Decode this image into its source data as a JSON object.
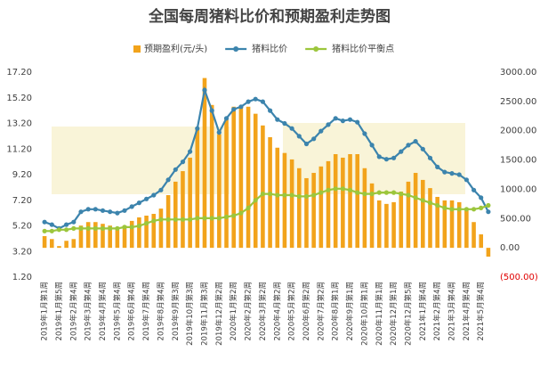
{
  "chart_data": {
    "type": "bar-line",
    "title": "全国每周猪料比价和预期盈利走势图",
    "categories": [
      "2019年1月第1周",
      null,
      "2019年1月第5周",
      null,
      "2019年2月第4周",
      null,
      "2019年3月第4周",
      null,
      "2019年4月第4周",
      null,
      "2019年5月第4周",
      null,
      "2019年6月第4周",
      null,
      "2019年7月第4周",
      null,
      "2019年8月第4周",
      null,
      "2019年9月第3周",
      null,
      "2019年10月第3周",
      null,
      "2019年11月第3周",
      null,
      "2019年12月第2周",
      null,
      "2020年1月第2周",
      null,
      "2020年2月第2周",
      null,
      "2020年3月第2周",
      null,
      "2020年4月第2周",
      null,
      "2020年5月第2周",
      null,
      "2020年6月第2周",
      null,
      "2020年7月第2周",
      null,
      "2020年8月第1周",
      null,
      "2020年9月第1周",
      null,
      "2020年10月第1周",
      null,
      "2020年11月第1周",
      null,
      "2020年12月第1周",
      null,
      "2020年12月第5周",
      null,
      "2021年1月第4周",
      null,
      "2021年2月第4周",
      null,
      "2021年3月第4周",
      null,
      "2021年4月第4周",
      null,
      "2021年5月第4周",
      null
    ],
    "series": [
      {
        "name": "预期盈利(元/头)",
        "kind": "bar",
        "axis": "y2",
        "color": "#f2a31b",
        "values": [
          200,
          150,
          30,
          120,
          150,
          380,
          440,
          440,
          410,
          380,
          350,
          380,
          460,
          520,
          550,
          580,
          670,
          900,
          1130,
          1310,
          1540,
          2030,
          2900,
          2440,
          1940,
          2230,
          2410,
          2410,
          2410,
          2290,
          2090,
          1890,
          1710,
          1620,
          1510,
          1360,
          1190,
          1280,
          1390,
          1480,
          1600,
          1540,
          1600,
          1600,
          1360,
          1100,
          810,
          750,
          780,
          960,
          1130,
          1280,
          1160,
          1020,
          870,
          810,
          810,
          780,
          670,
          440,
          230,
          -150
        ]
      },
      {
        "name": "猪料比价",
        "kind": "line",
        "color": "#3c84ad",
        "values": [
          5.5,
          5.3,
          5.0,
          5.3,
          5.5,
          6.3,
          6.5,
          6.5,
          6.4,
          6.3,
          6.2,
          6.4,
          6.7,
          7.0,
          7.3,
          7.6,
          8.0,
          8.8,
          9.6,
          10.2,
          11.0,
          12.8,
          15.8,
          14.2,
          12.5,
          13.6,
          14.3,
          14.5,
          14.9,
          15.1,
          14.9,
          14.2,
          13.5,
          13.2,
          12.8,
          12.2,
          11.6,
          12.0,
          12.6,
          13.1,
          13.6,
          13.4,
          13.5,
          13.3,
          12.4,
          11.5,
          10.6,
          10.4,
          10.5,
          11.0,
          11.5,
          11.8,
          11.2,
          10.5,
          9.8,
          9.4,
          9.3,
          9.2,
          8.8,
          8.0,
          7.4,
          6.3
        ]
      },
      {
        "name": "猪料比价平衡点",
        "kind": "line",
        "color": "#9cc63c",
        "values": [
          4.8,
          4.8,
          4.9,
          4.9,
          5.0,
          5.0,
          5.0,
          5.0,
          5.0,
          5.0,
          5.0,
          5.1,
          5.1,
          5.2,
          5.4,
          5.6,
          5.7,
          5.7,
          5.7,
          5.7,
          5.7,
          5.8,
          5.8,
          5.8,
          5.8,
          5.9,
          6.0,
          6.2,
          6.6,
          7.2,
          7.7,
          7.7,
          7.6,
          7.6,
          7.6,
          7.5,
          7.5,
          7.6,
          7.8,
          8.0,
          8.1,
          8.1,
          8.0,
          7.8,
          7.7,
          7.7,
          7.8,
          7.8,
          7.8,
          7.7,
          7.6,
          7.4,
          7.2,
          7.0,
          6.8,
          6.6,
          6.5,
          6.5,
          6.5,
          6.5,
          6.6,
          6.8
        ]
      }
    ],
    "ylim": [
      1.2,
      17.2
    ],
    "yticks": [
      {
        "value": 1.2,
        "label": "1.20"
      },
      {
        "value": 3.2,
        "label": "3.20"
      },
      {
        "value": 5.2,
        "label": "5.20"
      },
      {
        "value": 7.2,
        "label": "7.20"
      },
      {
        "value": 9.2,
        "label": "9.20"
      },
      {
        "value": 11.2,
        "label": "11.20"
      },
      {
        "value": 13.2,
        "label": "13.20"
      },
      {
        "value": 15.2,
        "label": "15.20"
      },
      {
        "value": 17.2,
        "label": "17.20"
      }
    ],
    "y2lim": [
      -500,
      3000
    ],
    "y2ticks": [
      {
        "value": -500,
        "label": "(500.00)"
      },
      {
        "value": 0,
        "label": "0.00"
      },
      {
        "value": 500,
        "label": "500.00"
      },
      {
        "value": 1000,
        "label": "1000.00"
      },
      {
        "value": 1500,
        "label": "1500.00"
      },
      {
        "value": 2000,
        "label": "2000.00"
      },
      {
        "value": 2500,
        "label": "2500.00"
      },
      {
        "value": 3000,
        "label": "3000.00"
      }
    ],
    "negative_label_color": "#e00000"
  }
}
